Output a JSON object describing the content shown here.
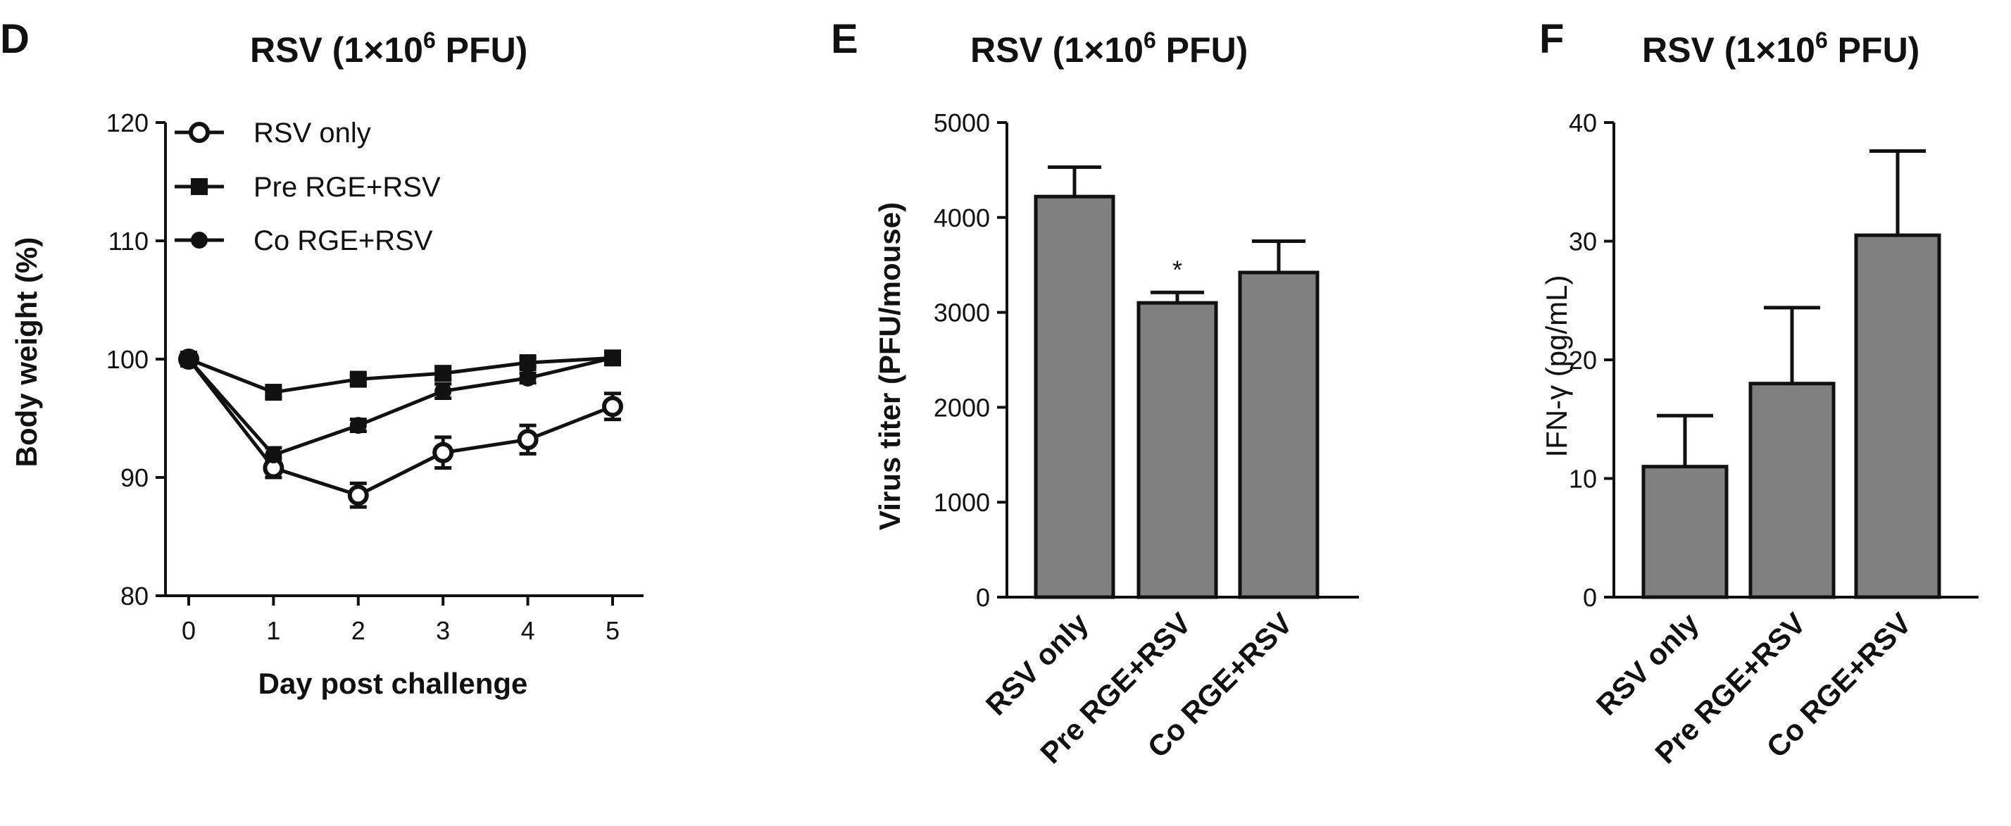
{
  "chart_data": [
    {
      "panel": "D",
      "type": "line",
      "title_pre": "RSV (1×10",
      "title_sup": "6",
      "title_post": " PFU)",
      "xlabel": "Day post challenge",
      "ylabel": "Body weight (%)",
      "x": [
        0,
        1,
        2,
        3,
        4,
        5
      ],
      "xlim": [
        -0.4,
        5.4
      ],
      "ylim": [
        80,
        120
      ],
      "yticks": [
        80,
        90,
        100,
        110,
        120
      ],
      "legend_position": "top-left",
      "series": [
        {
          "name": "RSV only",
          "marker": "open-circle",
          "values": [
            100,
            90.8,
            88.5,
            92.1,
            93.2,
            96.0
          ],
          "errors": [
            0.5,
            0.8,
            1.0,
            1.3,
            1.2,
            1.1
          ]
        },
        {
          "name": "Pre RGE+RSV",
          "marker": "filled-square",
          "values": [
            100,
            97.2,
            98.3,
            98.8,
            99.7,
            100.1
          ],
          "errors": [
            0.3,
            0.4,
            0.4,
            0.5,
            0.4,
            0.3
          ]
        },
        {
          "name": "Co RGE+RSV",
          "marker": "filled-circle",
          "values": [
            100,
            91.9,
            94.4,
            97.3,
            98.4,
            100.1
          ],
          "errors": [
            0.3,
            0.6,
            0.5,
            0.6,
            0.4,
            0.3
          ]
        }
      ]
    },
    {
      "panel": "E",
      "type": "bar",
      "title_pre": "RSV (1×10",
      "title_sup": "6",
      "title_post": " PFU)",
      "xlabel": "",
      "ylabel": "Virus titer (PFU/mouse)",
      "categories": [
        "RSV only",
        "Pre RGE+RSV",
        "Co RGE+RSV"
      ],
      "values": [
        4220,
        3100,
        3420
      ],
      "errors": [
        310,
        110,
        330
      ],
      "annotations": [
        "",
        "*",
        ""
      ],
      "ylim": [
        0,
        5000
      ],
      "yticks": [
        0,
        1000,
        2000,
        3000,
        4000,
        5000
      ]
    },
    {
      "panel": "F",
      "type": "bar",
      "title_pre": "RSV (1×10",
      "title_sup": "6",
      "title_post": " PFU)",
      "xlabel": "",
      "ylabel": "IFN-γ (pg/mL)",
      "categories": [
        "RSV only",
        "Pre RGE+RSV",
        "Co RGE+RSV"
      ],
      "values": [
        11.0,
        18.0,
        30.5
      ],
      "errors": [
        4.3,
        6.4,
        7.1
      ],
      "annotations": [
        "",
        "",
        ""
      ],
      "ylim": [
        0,
        40
      ],
      "yticks": [
        0,
        10,
        20,
        30,
        40
      ]
    }
  ]
}
